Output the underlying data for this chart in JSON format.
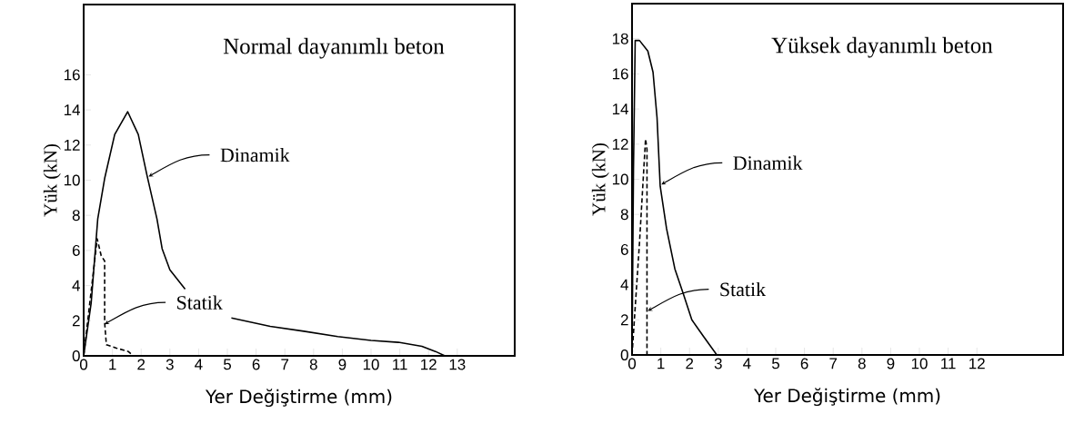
{
  "chart_data": [
    {
      "type": "line",
      "title": "Normal dayanımlı beton",
      "xlabel": "Yer Değiştirme  (mm)",
      "ylabel": "Yük (kN)",
      "xlim": [
        0,
        15
      ],
      "ylim": [
        0,
        20
      ],
      "xticks": [
        0,
        1,
        2,
        3,
        4,
        5,
        6,
        7,
        8,
        9,
        10,
        11,
        12,
        13
      ],
      "yticks": [
        0,
        2,
        4,
        6,
        8,
        10,
        12,
        14,
        16
      ],
      "series": [
        {
          "color": "#000000",
          "line_style": "solid",
          "x": [
            0,
            0.26,
            0.49,
            0.73,
            1.08,
            1.53,
            1.9,
            2.2,
            2.55,
            2.73,
            3.0,
            3.53,
            4.3,
            5.14,
            6.49,
            7.66,
            8.84,
            10.0,
            10.95,
            11.77,
            12.24,
            12.57
          ],
          "values": [
            0,
            3.0,
            7.8,
            10.1,
            12.6,
            13.9,
            12.6,
            10.3,
            7.8,
            6.1,
            4.9,
            3.8,
            null,
            2.16,
            1.68,
            1.4,
            1.1,
            0.88,
            0.77,
            0.54,
            0.25,
            0
          ]
        },
        {
          "color": "#000000",
          "line_style": "dashed",
          "x": [
            0,
            0.47,
            0.61,
            0.73,
            0.73,
            0.79,
            1.14,
            1.55,
            1.73
          ],
          "values": [
            0,
            6.66,
            5.7,
            5.4,
            1.9,
            0.63,
            0.44,
            0.25,
            0
          ]
        }
      ],
      "annotations": [
        {
          "text": "Dinamik",
          "x": 2.26,
          "y": 10.2
        },
        {
          "text": "Statik",
          "x": 0.73,
          "y": 1.8
        }
      ]
    },
    {
      "type": "line",
      "title": "Yüksek dayanımlı beton",
      "xlabel": "Yer Değiştirme  (mm)",
      "ylabel": "Yük (kN)",
      "xlim": [
        0,
        15
      ],
      "ylim": [
        0,
        20
      ],
      "xticks": [
        0,
        1,
        2,
        3,
        4,
        5,
        6,
        7,
        8,
        9,
        10,
        11,
        12
      ],
      "yticks": [
        0,
        2,
        4,
        6,
        8,
        10,
        12,
        14,
        16,
        18
      ],
      "series": [
        {
          "color": "#000000",
          "line_style": "solid",
          "x": [
            0,
            0.05,
            0.11,
            0.26,
            0.55,
            0.73,
            0.87,
            0.98,
            1.2,
            1.49,
            1.78,
            2.08,
            2.49,
            2.95
          ],
          "values": [
            0,
            10.6,
            17.9,
            17.9,
            17.3,
            16.1,
            13.5,
            9.6,
            7.2,
            4.9,
            3.5,
            2.0,
            1.05,
            0
          ]
        },
        {
          "color": "#000000",
          "line_style": "dashed",
          "x": [
            0,
            0.26,
            0.47,
            0.52,
            0.52
          ],
          "values": [
            0,
            6.4,
            12.3,
            11.7,
            0
          ]
        }
      ],
      "annotations": [
        {
          "text": "Dinamik",
          "x": 1.02,
          "y": 9.7
        },
        {
          "text": "Statik",
          "x": 0.55,
          "y": 2.5
        }
      ]
    }
  ]
}
